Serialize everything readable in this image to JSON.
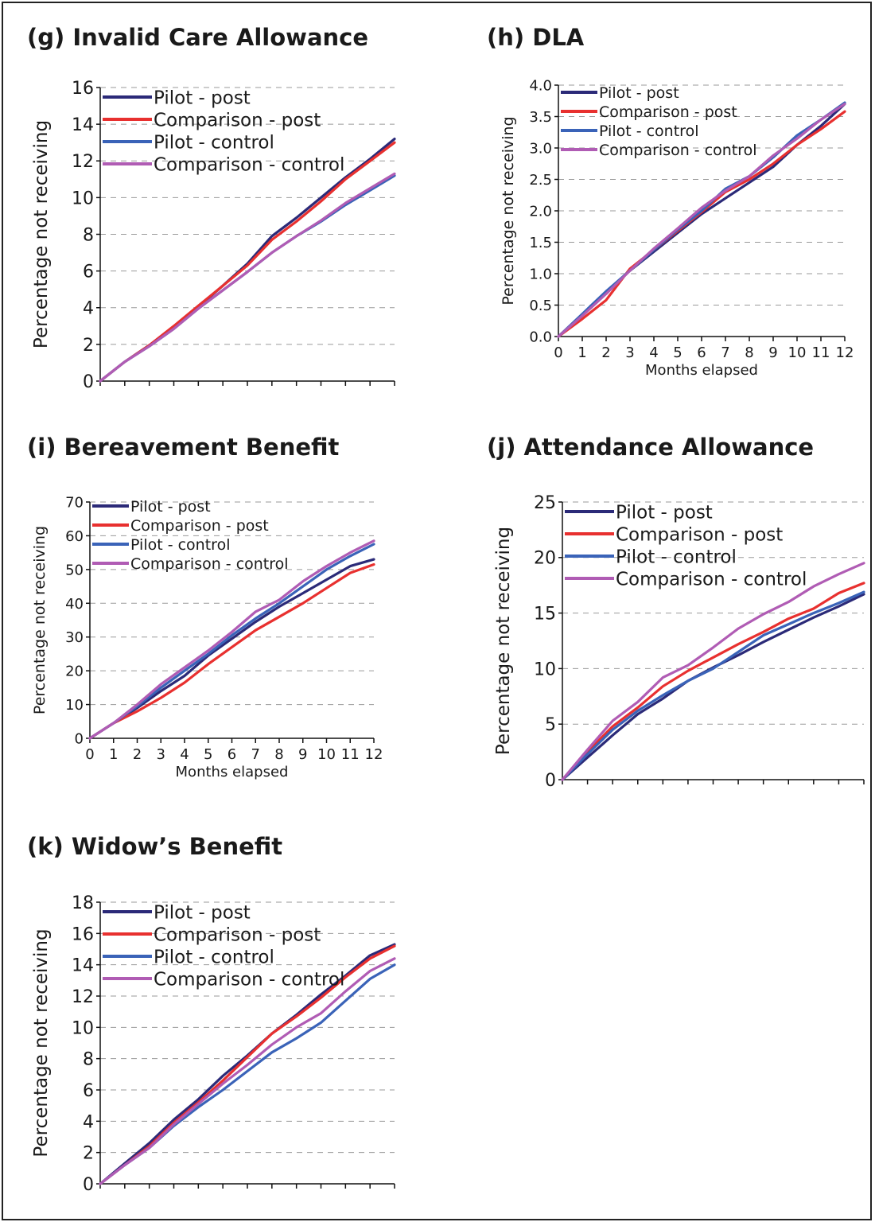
{
  "colors": {
    "pilot_post": "#2b2a78",
    "comparison_post": "#e8302f",
    "pilot_control": "#3a63b8",
    "comparison_control": "#b05cb4",
    "grid": "#9a9a9a",
    "axis": "#111111"
  },
  "chart_data": [
    {
      "id": "g",
      "type": "line",
      "title": "(g) Invalid Care Allowance",
      "xlabel": "",
      "ylabel": "Percentage not receiving",
      "x": [
        0,
        1,
        2,
        3,
        4,
        5,
        6,
        7,
        8,
        9,
        10,
        11,
        12
      ],
      "ylim": [
        0,
        16
      ],
      "yticks": [
        0,
        2,
        4,
        6,
        8,
        10,
        12,
        14,
        16
      ],
      "yticks_labels": [
        "0",
        "2",
        "4",
        "6",
        "8",
        "10",
        "12",
        "14",
        "16"
      ],
      "xtick_labels_shown": false,
      "grid": true,
      "legend": "top-left",
      "series": [
        {
          "name": "Pilot - post",
          "color_key": "pilot_post",
          "values": [
            0,
            1.05,
            1.95,
            2.95,
            4.05,
            5.2,
            6.4,
            7.9,
            8.9,
            10.0,
            11.1,
            12.1,
            13.2
          ]
        },
        {
          "name": "Comparison - post",
          "color_key": "comparison_post",
          "values": [
            0,
            1.05,
            1.95,
            3.0,
            4.1,
            5.2,
            6.3,
            7.7,
            8.7,
            9.8,
            11.0,
            12.0,
            13.0
          ]
        },
        {
          "name": "Pilot - control",
          "color_key": "pilot_control",
          "values": [
            0,
            1.05,
            1.9,
            2.85,
            3.95,
            4.95,
            5.95,
            7.0,
            7.9,
            8.7,
            9.6,
            10.4,
            11.2
          ]
        },
        {
          "name": "Comparison - control",
          "color_key": "comparison_control",
          "values": [
            0,
            1.05,
            1.9,
            2.85,
            3.95,
            4.95,
            5.95,
            7.0,
            7.9,
            8.75,
            9.7,
            10.5,
            11.3
          ]
        }
      ]
    },
    {
      "id": "h",
      "type": "line",
      "title": "(h) DLA",
      "xlabel": "Months elapsed",
      "ylabel": "Percentage not receiving",
      "x": [
        0,
        1,
        2,
        3,
        4,
        5,
        6,
        7,
        8,
        9,
        10,
        11,
        12
      ],
      "ylim": [
        0,
        4.0
      ],
      "yticks": [
        0,
        0.5,
        1,
        1.5,
        2,
        2.5,
        3,
        3.5,
        4
      ],
      "yticks_labels": [
        "0.0",
        "0.5",
        "1.0",
        "1.5",
        "2.0",
        "2.5",
        "3.0",
        "3.5",
        "4.0"
      ],
      "xtick_labels_shown": true,
      "xtick_labels": [
        "0",
        "1",
        "2",
        "3",
        "4",
        "5",
        "6",
        "7",
        "8",
        "9",
        "10",
        "11",
        "12"
      ],
      "grid": true,
      "legend": "top-left",
      "series": [
        {
          "name": "Pilot - post",
          "color_key": "pilot_post",
          "values": [
            0,
            0.35,
            0.7,
            1.05,
            1.35,
            1.65,
            1.95,
            2.2,
            2.45,
            2.7,
            3.05,
            3.35,
            3.7
          ]
        },
        {
          "name": "Comparison - post",
          "color_key": "comparison_post",
          "values": [
            0,
            0.28,
            0.58,
            1.08,
            1.38,
            1.68,
            1.98,
            2.3,
            2.5,
            2.75,
            3.05,
            3.3,
            3.58
          ]
        },
        {
          "name": "Pilot - control",
          "color_key": "pilot_control",
          "values": [
            0,
            0.36,
            0.72,
            1.05,
            1.38,
            1.7,
            2.0,
            2.35,
            2.55,
            2.85,
            3.2,
            3.45,
            3.72
          ]
        },
        {
          "name": "Comparison - control",
          "color_key": "comparison_control",
          "values": [
            0,
            0.33,
            0.68,
            1.05,
            1.4,
            1.72,
            2.05,
            2.32,
            2.55,
            2.88,
            3.15,
            3.45,
            3.7
          ]
        }
      ]
    },
    {
      "id": "i",
      "type": "line",
      "title": "(i) Bereavement Benefit",
      "xlabel": "Months elapsed",
      "ylabel": "Percentage not receiving",
      "x": [
        0,
        1,
        2,
        3,
        4,
        5,
        6,
        7,
        8,
        9,
        10,
        11,
        12
      ],
      "ylim": [
        0,
        70
      ],
      "yticks": [
        0,
        10,
        20,
        30,
        40,
        50,
        60,
        70
      ],
      "yticks_labels": [
        "0",
        "10",
        "20",
        "30",
        "40",
        "50",
        "60",
        "70"
      ],
      "xtick_labels_shown": true,
      "xtick_labels": [
        "0",
        "1",
        "2",
        "3",
        "4",
        "5",
        "6",
        "7",
        "8",
        "9",
        "10",
        "11",
        "12"
      ],
      "grid": true,
      "legend": "top-left",
      "series": [
        {
          "name": "Pilot - post",
          "color_key": "pilot_post",
          "values": [
            0,
            4.5,
            9,
            14,
            18.5,
            24.5,
            29.5,
            34.5,
            39,
            43,
            47,
            51,
            53
          ]
        },
        {
          "name": "Comparison - post",
          "color_key": "comparison_post",
          "values": [
            0,
            4.5,
            8,
            12,
            16.5,
            22,
            27,
            32,
            36,
            40,
            44.5,
            49,
            51.5
          ]
        },
        {
          "name": "Pilot - control",
          "color_key": "pilot_control",
          "values": [
            0,
            4.5,
            9.5,
            15,
            20,
            25,
            30.5,
            35.5,
            40,
            45,
            50,
            54,
            57.5
          ]
        },
        {
          "name": "Comparison - control",
          "color_key": "comparison_control",
          "values": [
            0,
            4.5,
            10,
            16,
            21,
            26,
            31.5,
            37.5,
            41,
            46.5,
            51,
            55,
            58.5
          ]
        }
      ]
    },
    {
      "id": "j",
      "type": "line",
      "title": "(j) Attendance Allowance",
      "xlabel": "",
      "ylabel": "Percentage not receiving",
      "x": [
        0,
        1,
        2,
        3,
        4,
        5,
        6,
        7,
        8,
        9,
        10,
        11,
        12
      ],
      "ylim": [
        0,
        25
      ],
      "yticks": [
        0,
        5,
        10,
        15,
        20,
        25
      ],
      "yticks_labels": [
        "0",
        "5",
        "10",
        "15",
        "20",
        "25"
      ],
      "xtick_labels_shown": false,
      "grid": true,
      "legend": "top-left",
      "series": [
        {
          "name": "Pilot - post",
          "color_key": "pilot_post",
          "values": [
            0,
            2.0,
            4.0,
            5.9,
            7.3,
            8.9,
            10.1,
            11.2,
            12.4,
            13.5,
            14.6,
            15.6,
            16.7
          ]
        },
        {
          "name": "Comparison - post",
          "color_key": "comparison_post",
          "values": [
            0,
            2.5,
            4.8,
            6.5,
            8.4,
            9.8,
            11.0,
            12.2,
            13.3,
            14.5,
            15.4,
            16.8,
            17.7
          ]
        },
        {
          "name": "Pilot - control",
          "color_key": "pilot_control",
          "values": [
            0,
            2.3,
            4.5,
            6.2,
            7.6,
            8.9,
            10.0,
            11.5,
            13.0,
            14.0,
            15.0,
            15.9,
            16.9
          ]
        },
        {
          "name": "Comparison - control",
          "color_key": "comparison_control",
          "values": [
            0,
            2.7,
            5.3,
            7.0,
            9.2,
            10.3,
            11.9,
            13.6,
            14.9,
            16.0,
            17.4,
            18.5,
            19.5
          ]
        }
      ]
    },
    {
      "id": "k",
      "type": "line",
      "title": "(k) Widow’s Benefit",
      "xlabel": "",
      "ylabel": "Percentage not receiving",
      "x": [
        0,
        1,
        2,
        3,
        4,
        5,
        6,
        7,
        8,
        9,
        10,
        11,
        12
      ],
      "ylim": [
        0,
        18
      ],
      "yticks": [
        0,
        2,
        4,
        6,
        8,
        10,
        12,
        14,
        16,
        18
      ],
      "yticks_labels": [
        "0",
        "2",
        "4",
        "6",
        "8",
        "10",
        "12",
        "14",
        "16",
        "18"
      ],
      "xtick_labels_shown": false,
      "grid": true,
      "legend": "top-left",
      "series": [
        {
          "name": "Pilot - post",
          "color_key": "pilot_post",
          "values": [
            0,
            1.3,
            2.6,
            4.1,
            5.4,
            6.9,
            8.2,
            9.6,
            10.8,
            12.1,
            13.3,
            14.6,
            15.3
          ]
        },
        {
          "name": "Comparison - post",
          "color_key": "comparison_post",
          "values": [
            0,
            1.2,
            2.4,
            3.9,
            5.2,
            6.6,
            8.1,
            9.6,
            10.7,
            11.9,
            13.2,
            14.4,
            15.2
          ]
        },
        {
          "name": "Pilot - control",
          "color_key": "pilot_control",
          "values": [
            0,
            1.2,
            2.3,
            3.7,
            4.9,
            6.0,
            7.2,
            8.4,
            9.3,
            10.3,
            11.7,
            13.1,
            14.0
          ]
        },
        {
          "name": "Comparison - control",
          "color_key": "comparison_control",
          "values": [
            0,
            1.2,
            2.3,
            3.8,
            5.1,
            6.4,
            7.6,
            8.9,
            10.0,
            10.9,
            12.3,
            13.6,
            14.4
          ]
        }
      ]
    }
  ]
}
